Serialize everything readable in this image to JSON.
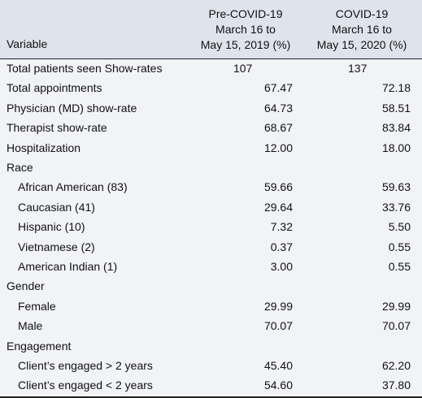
{
  "header": {
    "variable": "Variable",
    "col1": [
      "Pre-COVID-19",
      "March 16 to",
      "May 15, 2019 (%)"
    ],
    "col2": [
      "COVID-19",
      "March 16 to",
      "May 15, 2020 (%)"
    ]
  },
  "rows": [
    {
      "label": "Total patients seen Show-rates",
      "v1": "107",
      "v2": "137"
    },
    {
      "label": "Total appointments",
      "v1": "67.47",
      "v2": "72.18"
    },
    {
      "label": "Physician (MD) show-rate",
      "v1": "64.73",
      "v2": "58.51"
    },
    {
      "label": "Therapist show-rate",
      "v1": "68.67",
      "v2": "83.84"
    },
    {
      "label": "Hospitalization",
      "v1": "12.00",
      "v2": "18.00"
    },
    {
      "label": "Race",
      "v1": "",
      "v2": ""
    },
    {
      "label": "African American (83)",
      "v1": "59.66",
      "v2": "59.63"
    },
    {
      "label": "Caucasian (41)",
      "v1": "29.64",
      "v2": "33.76"
    },
    {
      "label": "Hispanic (10)",
      "v1": "7.32",
      "v2": "5.50"
    },
    {
      "label": "Vietnamese (2)",
      "v1": "0.37",
      "v2": "0.55"
    },
    {
      "label": "American Indian (1)",
      "v1": "3.00",
      "v2": "0.55"
    },
    {
      "label": "Gender",
      "v1": "",
      "v2": ""
    },
    {
      "label": "Female",
      "v1": "29.99",
      "v2": "29.99"
    },
    {
      "label": "Male",
      "v1": "70.07",
      "v2": "70.07"
    },
    {
      "label": "Engagement",
      "v1": "",
      "v2": ""
    },
    {
      "label": "Client’s engaged > 2 years",
      "v1": "45.40",
      "v2": "62.20"
    },
    {
      "label": "Client’s engaged < 2 years",
      "v1": "54.60",
      "v2": "37.80"
    }
  ]
}
